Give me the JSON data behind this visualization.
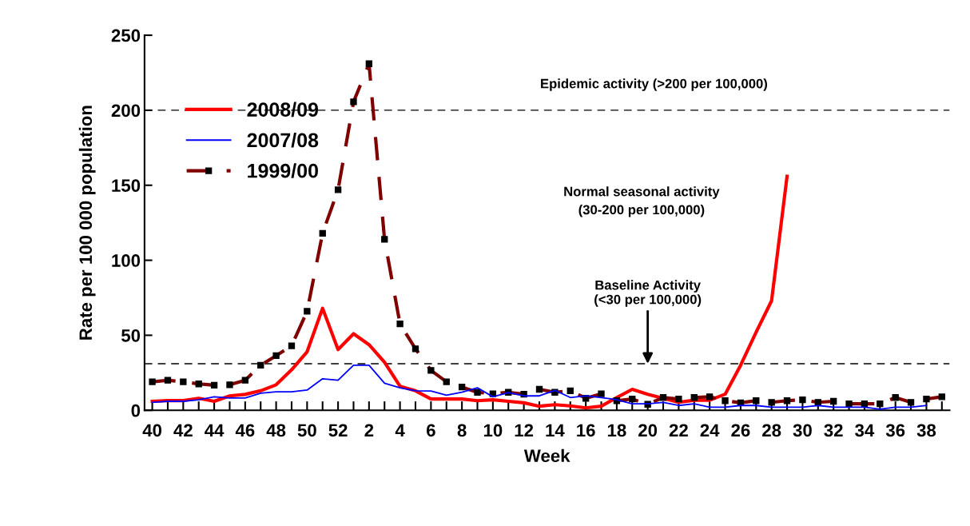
{
  "chart_data": {
    "type": "line",
    "ylabel": "Rate per 100 000 population",
    "xlabel": "Week",
    "categories": [
      "40",
      null,
      "42",
      null,
      "44",
      null,
      "46",
      null,
      "48",
      null,
      "50",
      null,
      "52",
      null,
      "2",
      null,
      "4",
      null,
      "6",
      null,
      "8",
      null,
      "10",
      null,
      "12",
      null,
      "14",
      null,
      "16",
      null,
      "18",
      null,
      "20",
      null,
      "22",
      null,
      "24",
      null,
      "26",
      null,
      "28",
      null,
      "30",
      null,
      "32",
      null,
      "34",
      null,
      "36",
      null,
      "38",
      null
    ],
    "series": [
      {
        "name": "2008/09",
        "color": "#ff0000",
        "line_style": "solid",
        "values": [
          6,
          6.5,
          6.5,
          8,
          6,
          9.6,
          10.6,
          13,
          17,
          27,
          39,
          68,
          40.5,
          51,
          43.7,
          32,
          16,
          13,
          7.5,
          7.5,
          7.5,
          6.4,
          7,
          6,
          5,
          2.7,
          3.7,
          2.9,
          1.6,
          2.7,
          8.5,
          14,
          10.7,
          8,
          5.3,
          6.7,
          6.7,
          10.7,
          30,
          52,
          73,
          156,
          null,
          null,
          null,
          null,
          null,
          null,
          null,
          null,
          null,
          null
        ]
      },
      {
        "name": "2007/08",
        "color": "#0000ff",
        "line_style": "solid",
        "values": [
          5.3,
          6,
          6,
          7,
          9,
          8.2,
          8.2,
          11.4,
          12.3,
          12.3,
          13.5,
          21,
          20,
          30,
          30,
          18,
          15,
          13,
          12.8,
          10,
          12,
          15,
          9,
          11.8,
          9.6,
          9.6,
          13.3,
          8.5,
          9.6,
          8.5,
          7,
          4.3,
          4.3,
          5.3,
          3.2,
          4.3,
          2.1,
          2.1,
          3.2,
          3.2,
          2.1,
          2.1,
          2.1,
          3.2,
          2.1,
          2.1,
          2.1,
          0.7,
          2.1,
          2.1,
          3.2,
          null
        ]
      },
      {
        "name": "1999/00",
        "color": "#800000",
        "line_style": "dashed",
        "marker": "square",
        "values": [
          19,
          20,
          19,
          17.6,
          16.7,
          17,
          20,
          30,
          36.4,
          43,
          66,
          118,
          147,
          205.6,
          231,
          114,
          57.6,
          41,
          26.6,
          19,
          15.5,
          12,
          11,
          12,
          10.7,
          14,
          12,
          13,
          8,
          11,
          6.4,
          7.5,
          4,
          8.5,
          7.5,
          8.5,
          9,
          6.4,
          5,
          6.4,
          5.3,
          6.4,
          7,
          5.3,
          6,
          4.3,
          4.3,
          4.3,
          8.5,
          5.3,
          7.5,
          9
        ]
      }
    ],
    "ylim": [
      0,
      250
    ],
    "yticks": [
      0,
      50,
      100,
      150,
      200,
      250
    ],
    "ref_lines": [
      {
        "axis": "y",
        "value": 200,
        "color": "#000000",
        "line_style": "dashed"
      },
      {
        "axis": "y",
        "value": 31,
        "color": "#000000",
        "line_style": "dashed"
      }
    ],
    "annotations": [
      "Epidemic activity (>200 per 100,000)",
      "Normal seasonal activity\n(30-200 per 100,000)",
      {
        "text": "Baseline Activity\n(<30 per 100,000)",
        "x": "20",
        "y": 31
      }
    ],
    "grid": false,
    "legend": "top left"
  }
}
